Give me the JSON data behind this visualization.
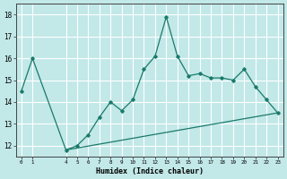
{
  "xlabel": "Humidex (Indice chaleur)",
  "background_color": "#c2e8e8",
  "grid_color": "#ffffff",
  "line_color": "#1a7a6a",
  "xlim": [
    -0.5,
    23.5
  ],
  "ylim": [
    11.5,
    18.5
  ],
  "xticks": [
    0,
    1,
    4,
    5,
    6,
    7,
    8,
    9,
    10,
    11,
    12,
    13,
    14,
    15,
    16,
    17,
    18,
    19,
    20,
    21,
    22,
    23
  ],
  "yticks": [
    12,
    13,
    14,
    15,
    16,
    17,
    18
  ],
  "line1_x": [
    0,
    1,
    4,
    5,
    6,
    7,
    8,
    9,
    10,
    11,
    12,
    13,
    14,
    15,
    16,
    17,
    18,
    19,
    20,
    21,
    22,
    23
  ],
  "line1_y": [
    14.5,
    16.0,
    11.8,
    12.0,
    12.5,
    13.3,
    14.0,
    13.6,
    14.1,
    15.5,
    16.1,
    17.9,
    16.1,
    15.2,
    15.3,
    15.1,
    15.1,
    15.0,
    15.5,
    14.7,
    14.1,
    13.5
  ],
  "line2_x": [
    4,
    23
  ],
  "line2_y": [
    11.8,
    13.5
  ]
}
